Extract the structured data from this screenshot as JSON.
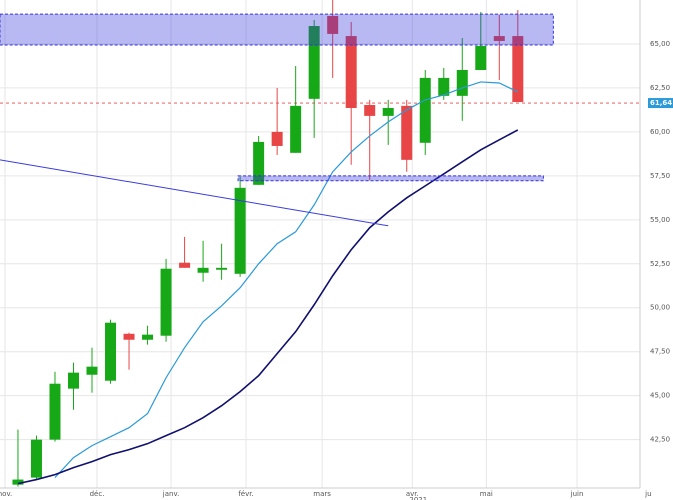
{
  "chart_data": {
    "type": "candlestick",
    "categories": [
      null,
      null,
      null,
      null,
      null,
      null,
      null,
      null,
      null,
      null,
      null,
      null,
      null,
      null,
      null,
      null,
      null,
      null,
      null,
      null,
      null,
      null,
      null,
      null,
      null,
      null,
      null,
      null
    ],
    "open": [
      39.94,
      40.34,
      42.5,
      45.4,
      46.19,
      45.85,
      48.52,
      48.18,
      48.41,
      52.56,
      51.99,
      52.16,
      51.93,
      56.99,
      60.0,
      58.81,
      61.88,
      66.59,
      65.45,
      61.53,
      60.91,
      61.48,
      59.38,
      62.05,
      62.05,
      63.52,
      65.45,
      65.45
    ],
    "high": [
      43.07,
      42.73,
      46.36,
      46.88,
      47.73,
      49.32,
      48.58,
      48.98,
      52.78,
      54.03,
      53.81,
      53.64,
      57.44,
      59.77,
      62.5,
      63.75,
      66.36,
      67.5,
      66.25,
      61.82,
      61.82,
      61.82,
      63.52,
      63.64,
      65.34,
      66.82,
      66.65,
      66.93
    ],
    "low": [
      39.83,
      40.23,
      42.39,
      44.2,
      45.17,
      45.68,
      46.48,
      47.9,
      48.07,
      52.27,
      51.48,
      51.59,
      51.76,
      56.99,
      58.69,
      58.81,
      59.66,
      63.07,
      58.13,
      57.27,
      59.26,
      57.73,
      58.69,
      61.82,
      60.63,
      63.52,
      62.95,
      61.7
    ],
    "close": [
      40.23,
      42.5,
      45.68,
      46.31,
      46.65,
      49.15,
      48.18,
      48.47,
      52.22,
      52.27,
      52.27,
      52.27,
      56.82,
      59.43,
      59.2,
      61.48,
      66.02,
      65.57,
      61.36,
      60.91,
      61.36,
      58.41,
      63.07,
      63.07,
      63.52,
      64.89,
      65.17,
      61.7
    ],
    "up_color": "#17a817",
    "down_color": "#e84646",
    "series": [
      {
        "color": "#2a9ad8",
        "values": [
          null,
          null,
          40.34,
          41.48,
          42.16,
          42.67,
          43.18,
          43.98,
          46.02,
          47.73,
          49.2,
          50.11,
          51.14,
          52.5,
          53.64,
          54.32,
          55.85,
          57.73,
          58.86,
          59.77,
          60.57,
          61.25,
          61.82,
          62.1,
          62.5,
          62.84,
          62.78,
          62.27
        ]
      },
      {
        "color": "#10106e",
        "values": [
          40.0,
          40.23,
          40.51,
          40.91,
          41.25,
          41.65,
          41.93,
          42.27,
          42.73,
          43.18,
          43.75,
          44.43,
          45.23,
          46.14,
          47.39,
          48.64,
          50.17,
          51.82,
          53.3,
          54.55,
          55.45,
          56.25,
          56.93,
          57.61,
          58.3,
          58.98,
          59.55,
          60.11
        ]
      }
    ],
    "xlim": [
      -0.97,
      33.6
    ],
    "xticks": [
      {
        "value": -0.7,
        "label": "nov."
      },
      {
        "value": 4.27,
        "label": "déc."
      },
      {
        "value": 8.27,
        "label": "janv."
      },
      {
        "value": 12.32,
        "label": "févr."
      },
      {
        "value": 16.43,
        "label": "mars"
      },
      {
        "value": 21.3,
        "label": "avr."
      },
      {
        "value": 25.3,
        "label": "mai"
      },
      {
        "value": 30.2,
        "label": "juin"
      },
      {
        "value": 34.05,
        "label": "ju"
      }
    ],
    "year_label": "2021",
    "ylim": [
      39.75,
      67.5
    ],
    "yticks": [
      {
        "value": 42.5,
        "label": "42,50"
      },
      {
        "value": 45,
        "label": "45,00"
      },
      {
        "value": 47.5,
        "label": "47,50"
      },
      {
        "value": 50,
        "label": "50,00"
      },
      {
        "value": 52.5,
        "label": "52,50"
      },
      {
        "value": 55,
        "label": "55,00"
      },
      {
        "value": 57.5,
        "label": "57,50"
      },
      {
        "value": 60,
        "label": "60,00"
      },
      {
        "value": 62.5,
        "label": "62,50"
      },
      {
        "value": 65,
        "label": "65,00"
      }
    ],
    "grid": true,
    "last_price": {
      "value": 61.64,
      "label": "61,64",
      "color": "#e84646",
      "label_color": "#2a9ad8"
    },
    "trendline": {
      "x": [
        -0.97,
        20.0
      ],
      "y": [
        58.41,
        54.66
      ],
      "color": "#3b3bdc"
    },
    "zones": [
      {
        "x": [
          -0.97,
          28.92
        ],
        "y": [
          64.94,
          66.7
        ]
      },
      {
        "x": [
          11.89,
          28.38
        ],
        "y": [
          57.22,
          57.5
        ]
      }
    ],
    "zone_color": "#3333dd"
  }
}
